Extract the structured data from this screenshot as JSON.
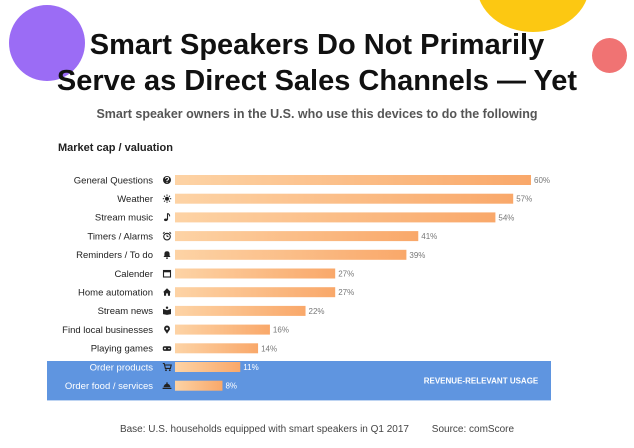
{
  "header": {
    "title_line1": "Smart Speakers Do Not Primarily",
    "title_line2": "Serve as Direct Sales Channels — Yet",
    "subtitle": "Smart speaker owners in the U.S. who use this devices to do the following",
    "section_label": "Market cap / valuation"
  },
  "footer": {
    "base": "Base: U.S. households equipped with smart speakers in Q1 2017",
    "source": "Source: comScore"
  },
  "colors": {
    "bar_start": "#fdd3a5",
    "bar_end": "#f9a86a",
    "highlight_band": "#5f95e0",
    "icon": "#222222"
  },
  "chart_data": {
    "type": "bar",
    "orientation": "horizontal",
    "categories": [
      "General Questions",
      "Weather",
      "Stream music",
      "Timers / Alarms",
      "Reminders / To do",
      "Calender",
      "Home automation",
      "Stream news",
      "Find local businesses",
      "Playing games",
      "Order products",
      "Order food / services"
    ],
    "values": [
      60,
      57,
      54,
      41,
      39,
      27,
      27,
      22,
      16,
      14,
      11,
      8
    ],
    "value_labels": [
      "60%",
      "57%",
      "54%",
      "41%",
      "39%",
      "27%",
      "27%",
      "22%",
      "16%",
      "14%",
      "11%",
      "8%"
    ],
    "icons": [
      "question-icon",
      "sun-icon",
      "music-note-icon",
      "alarm-clock-icon",
      "bell-icon",
      "calendar-icon",
      "house-icon",
      "news-icon",
      "location-pin-icon",
      "gamepad-icon",
      "cart-icon",
      "food-tray-icon"
    ],
    "xlim": [
      0,
      60
    ],
    "highlight": {
      "categories": [
        "Order products",
        "Order food / services"
      ],
      "label": "REVENUE-RELEVANT USAGE"
    }
  }
}
